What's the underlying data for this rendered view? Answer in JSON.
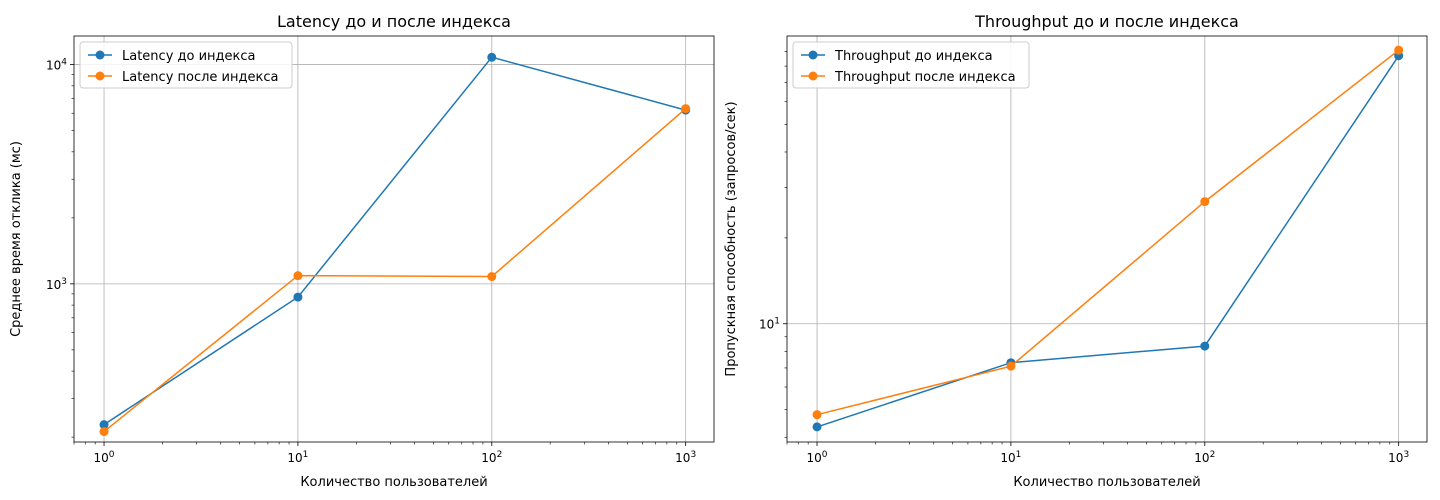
{
  "chart_data": [
    {
      "type": "line",
      "title": "Latency до и после индекса",
      "xlabel": "Количество пользователей",
      "ylabel": "Среднее время отклика (мс)",
      "xscale": "log",
      "yscale": "log",
      "xlim": [
        0.7,
        1400
      ],
      "ylim": [
        190,
        13500
      ],
      "x": [
        1,
        10,
        100,
        1000
      ],
      "xticks": [
        1,
        10,
        100,
        1000
      ],
      "xtick_labels": [
        {
          "base": "10",
          "exp": "0"
        },
        {
          "base": "10",
          "exp": "1"
        },
        {
          "base": "10",
          "exp": "2"
        },
        {
          "base": "10",
          "exp": "3"
        }
      ],
      "yticks": [
        1000,
        10000
      ],
      "ytick_labels": [
        {
          "base": "10",
          "exp": "3"
        },
        {
          "base": "10",
          "exp": "4"
        }
      ],
      "grid": true,
      "legend_position": "top-left",
      "series": [
        {
          "name": "Latency до индекса",
          "color": "#1f77b4",
          "values": [
            228,
            870,
            10800,
            6200
          ]
        },
        {
          "name": "Latency после индекса",
          "color": "#ff7f0e",
          "values": [
            212,
            1090,
            1080,
            6300
          ]
        }
      ]
    },
    {
      "type": "line",
      "title": "Throughput до и после индекса",
      "xlabel": "Количество пользователей",
      "ylabel": "Пропускная способность (запросов/сек)",
      "xscale": "log",
      "yscale": "log",
      "xlim": [
        0.7,
        1400
      ],
      "ylim": [
        3.85,
        102
      ],
      "x": [
        1,
        10,
        100,
        1000
      ],
      "xticks": [
        1,
        10,
        100,
        1000
      ],
      "xtick_labels": [
        {
          "base": "10",
          "exp": "0"
        },
        {
          "base": "10",
          "exp": "1"
        },
        {
          "base": "10",
          "exp": "2"
        },
        {
          "base": "10",
          "exp": "3"
        }
      ],
      "yticks": [
        10
      ],
      "ytick_labels": [
        {
          "base": "10",
          "exp": "1"
        }
      ],
      "grid": true,
      "legend_position": "top-left",
      "series": [
        {
          "name": "Throughput до индекса",
          "color": "#1f77b4",
          "values": [
            4.35,
            7.3,
            8.35,
            87
          ]
        },
        {
          "name": "Throughput после индекса",
          "color": "#ff7f0e",
          "values": [
            4.8,
            7.1,
            26.8,
            91
          ]
        }
      ]
    }
  ]
}
